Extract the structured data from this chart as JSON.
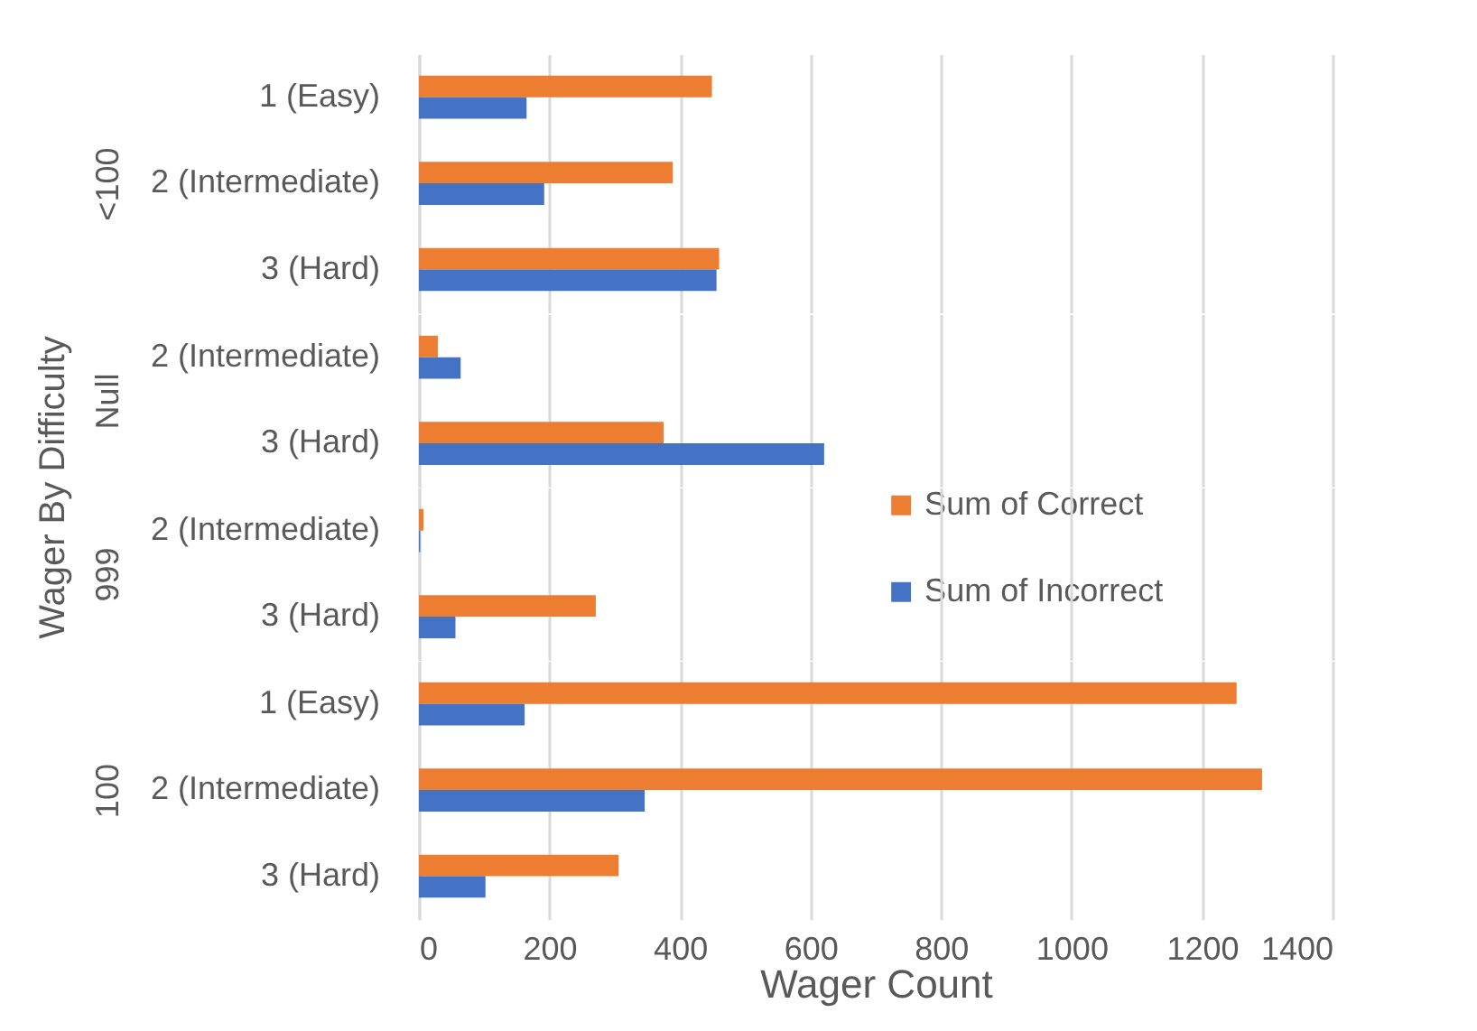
{
  "chart_data": [
    {
      "type": "bar",
      "orientation": "horizontal",
      "ylabel": "<100",
      "annotations": [
        "Wager By Difficulty"
      ],
      "categories": [
        "1 (Easy)",
        "2 (Intermediate)",
        "3 (Hard)"
      ],
      "tick_labels": "y",
      "xlim": [
        0,
        1400
      ],
      "xticks": [
        0,
        200,
        400,
        600,
        800,
        1000,
        1200,
        1400
      ],
      "grid": "x",
      "legend": "right",
      "series": [
        {
          "name": "Sum of Correct",
          "color": "#ed7d31",
          "values": [
            449,
            389,
            460
          ]
        },
        {
          "name": "Sum of Incorrect",
          "color": "#4472c4",
          "values": [
            165,
            192,
            456
          ]
        }
      ]
    },
    {
      "type": "bar",
      "orientation": "horizontal",
      "ylabel": "Null",
      "categories": [
        "2 (Intermediate)",
        "3 (Hard)"
      ],
      "tick_labels": "y",
      "xlim": [
        0,
        1400
      ],
      "xticks": [
        0,
        200,
        400,
        600,
        800,
        1000,
        1200,
        1400
      ],
      "grid": "x",
      "series": [
        {
          "color": "#ed7d31",
          "values": [
            29,
            375
          ]
        },
        {
          "color": "#4472c4",
          "values": [
            64,
            621
          ]
        }
      ]
    },
    {
      "type": "bar",
      "orientation": "horizontal",
      "ylabel": "999",
      "categories": [
        "2 (Intermediate)",
        "3 (Hard)"
      ],
      "tick_labels": "y",
      "xlim": [
        0,
        1400
      ],
      "xticks": [
        0,
        200,
        400,
        600,
        800,
        1000,
        1200,
        1400
      ],
      "grid": "x",
      "series": [
        {
          "color": "#ed7d31",
          "values": [
            7,
            271
          ]
        },
        {
          "color": "#4472c4",
          "values": [
            2,
            56
          ]
        }
      ]
    },
    {
      "type": "bar",
      "orientation": "horizontal",
      "ylabel": "100",
      "xlabel": "Wager Count",
      "categories": [
        "1 (Easy)",
        "2 (Intermediate)",
        "3 (Hard)"
      ],
      "xlim": [
        0,
        1400
      ],
      "xticks": [
        0,
        200,
        400,
        600,
        800,
        1000,
        1200,
        1400
      ],
      "grid": "x",
      "series": [
        {
          "color": "#ed7d31",
          "values": [
            1253,
            1292,
            306
          ]
        },
        {
          "color": "#4472c4",
          "values": [
            162,
            346,
            102
          ]
        }
      ]
    }
  ]
}
